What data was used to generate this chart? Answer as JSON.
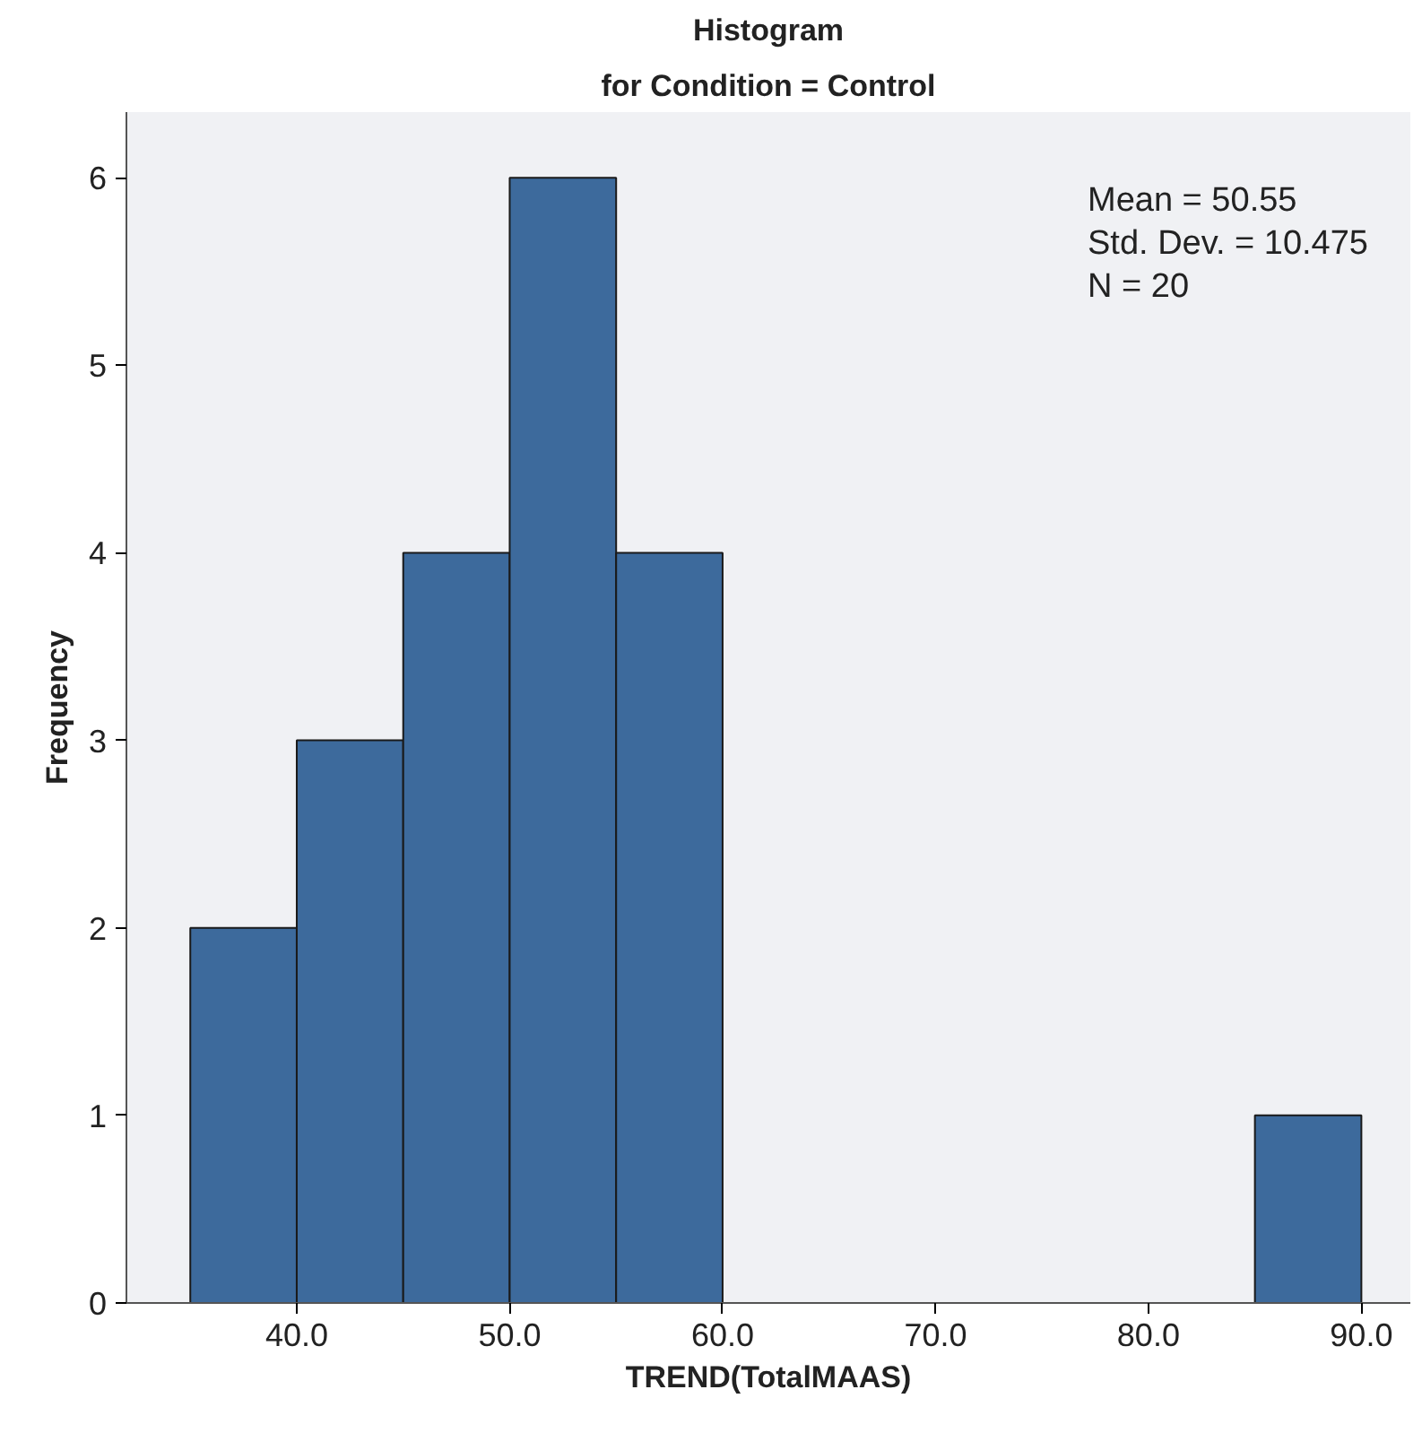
{
  "chart_data": {
    "type": "histogram",
    "title": "Histogram",
    "subtitle": "for Condition = Control",
    "xlabel": "TREND(TotalMAAS)",
    "ylabel": "Frequency",
    "bins": [
      35,
      40,
      45,
      50,
      55,
      60,
      65,
      70,
      75,
      80,
      85,
      90
    ],
    "values": [
      2,
      3,
      4,
      6,
      4,
      0,
      0,
      0,
      0,
      0,
      1
    ],
    "color": "#3d6a9c",
    "xlim": [
      32,
      92.3
    ],
    "ylim": [
      0,
      6.35
    ],
    "xticks": [
      {
        "value": 40,
        "label": "40.0"
      },
      {
        "value": 50,
        "label": "50.0"
      },
      {
        "value": 60,
        "label": "60.0"
      },
      {
        "value": 70,
        "label": "70.0"
      },
      {
        "value": 80,
        "label": "80.0"
      },
      {
        "value": 90,
        "label": "90.0"
      }
    ],
    "yticks": [
      0,
      1,
      2,
      3,
      4,
      5,
      6
    ],
    "grid": false,
    "annotations": [
      "Mean = 50.55",
      "Std. Dev. = 10.475",
      "N = 20"
    ]
  }
}
